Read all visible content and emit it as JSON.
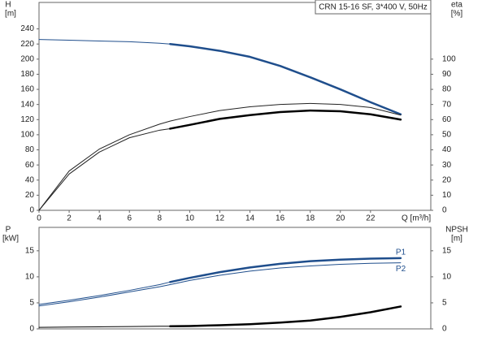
{
  "chart_data": [
    {
      "type": "line",
      "title": "CRN 15-16 SF, 3*400 V, 50Hz",
      "y_label": "H",
      "y_unit": "[m]",
      "y2_label": "eta",
      "y2_unit": "[%]",
      "x_label": "Q [m³/h]",
      "xlim": [
        0,
        26
      ],
      "xticks": [
        0,
        2,
        4,
        6,
        8,
        10,
        12,
        14,
        16,
        18,
        20,
        22
      ],
      "ylim": [
        0,
        275
      ],
      "yticks": [
        0,
        20,
        40,
        60,
        80,
        100,
        120,
        140,
        160,
        180,
        200,
        220,
        240
      ],
      "y2lim": [
        0,
        137.5
      ],
      "y2ticks": [
        0,
        10,
        20,
        30,
        40,
        50,
        60,
        70,
        80,
        90,
        100
      ],
      "x": [
        0,
        2,
        4,
        6,
        8,
        8.7,
        10,
        12,
        14,
        16,
        18,
        20,
        22,
        24
      ],
      "series": [
        {
          "color": "#1f4e8c",
          "width": 1,
          "values": [
            226,
            225,
            224,
            223,
            221,
            220,
            null,
            null,
            null,
            null,
            null,
            null,
            null,
            null
          ]
        },
        {
          "color": "#1f4e8c",
          "width": 2.5,
          "values": [
            null,
            null,
            null,
            null,
            null,
            220,
            217,
            211,
            203,
            191,
            176,
            160,
            143,
            127
          ]
        },
        {
          "color": "#222222",
          "width": 1,
          "axis": "y2",
          "values": [
            0,
            26,
            40.5,
            50,
            57,
            59,
            62,
            66,
            68.5,
            70,
            70.7,
            70,
            68,
            63
          ]
        },
        {
          "color": "#222222",
          "width": 1,
          "axis": "y2",
          "values": [
            0,
            24,
            38.5,
            48,
            53,
            54,
            null,
            null,
            null,
            null,
            null,
            null,
            null,
            null
          ]
        },
        {
          "color": "#000000",
          "width": 2.5,
          "axis": "y2",
          "values": [
            null,
            null,
            null,
            null,
            null,
            54,
            56.5,
            60.5,
            63,
            65,
            66,
            65.5,
            63.5,
            60
          ]
        }
      ]
    },
    {
      "type": "line",
      "y_label": "P",
      "y_unit": "[kW]",
      "y2_label": "NPSH",
      "y2_unit": "[m]",
      "xlim": [
        0,
        26
      ],
      "ylim": [
        0,
        19.5
      ],
      "yticks": [
        0,
        5,
        10,
        15
      ],
      "y2lim": [
        0,
        19.5
      ],
      "y2ticks": [
        0,
        5,
        10,
        15
      ],
      "x": [
        0,
        2,
        4,
        6,
        8,
        8.7,
        10,
        12,
        14,
        16,
        18,
        20,
        22,
        24
      ],
      "series": [
        {
          "color": "#1f4e8c",
          "width": 1,
          "values": [
            4.7,
            5.5,
            6.4,
            7.4,
            8.5,
            9.0,
            null,
            null,
            null,
            null,
            null,
            null,
            null,
            null
          ]
        },
        {
          "name": "P1",
          "color": "#1f4e8c",
          "width": 2.5,
          "values": [
            null,
            null,
            null,
            null,
            null,
            9.0,
            9.8,
            10.9,
            11.8,
            12.5,
            13.0,
            13.3,
            13.5,
            13.6
          ]
        },
        {
          "name": "P2",
          "color": "#1f4e8c",
          "width": 1,
          "values": [
            4.4,
            5.2,
            6.1,
            7.1,
            8.1,
            8.5,
            9.3,
            10.3,
            11.1,
            11.7,
            12.1,
            12.4,
            12.6,
            12.7
          ]
        },
        {
          "color": "#000000",
          "width": 1,
          "axis": "y2",
          "values": [
            0.3,
            0.35,
            0.4,
            0.45,
            0.5,
            0.5,
            null,
            null,
            null,
            null,
            null,
            null,
            null,
            null
          ]
        },
        {
          "color": "#000000",
          "width": 2.5,
          "axis": "y2",
          "values": [
            null,
            null,
            null,
            null,
            null,
            0.5,
            0.55,
            0.7,
            0.9,
            1.2,
            1.6,
            2.3,
            3.2,
            4.3
          ]
        }
      ]
    }
  ]
}
